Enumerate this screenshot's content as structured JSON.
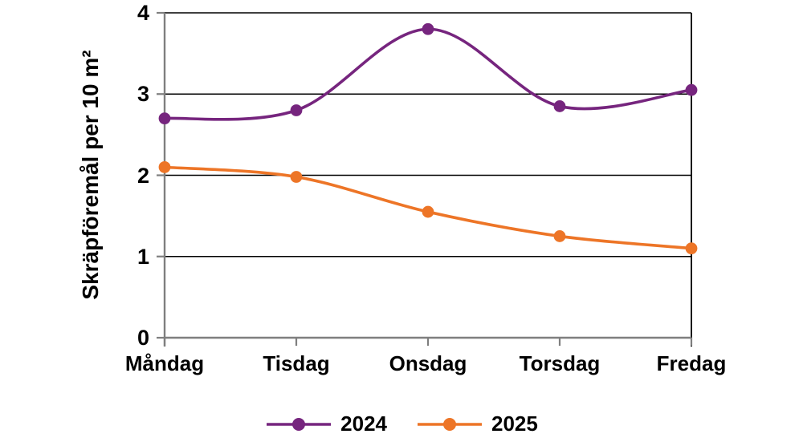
{
  "chart_data": {
    "type": "line",
    "title": "",
    "xlabel": "",
    "ylabel": "Skräpföremål per 10 m²",
    "categories": [
      "Måndag",
      "Tisdag",
      "Onsdag",
      "Torsdag",
      "Fredag"
    ],
    "series": [
      {
        "name": "2024",
        "color": "#76257E",
        "values": [
          2.7,
          2.8,
          3.8,
          2.85,
          3.05
        ]
      },
      {
        "name": "2025",
        "color": "#ED7527",
        "values": [
          2.1,
          1.98,
          1.55,
          1.25,
          1.1
        ]
      }
    ],
    "ylim": [
      0,
      4
    ],
    "yticks": [
      0,
      1,
      2,
      3,
      4
    ],
    "ytick_labels": [
      "0",
      "1",
      "2",
      "3",
      "4"
    ],
    "grid": "horizontal",
    "legend_position": "bottom",
    "line_style": "smooth",
    "marker": "circle",
    "colors": {
      "grid": "#000000",
      "axis": "#7F7F7F",
      "text": "#000000",
      "background": "#FFFFFF"
    }
  }
}
